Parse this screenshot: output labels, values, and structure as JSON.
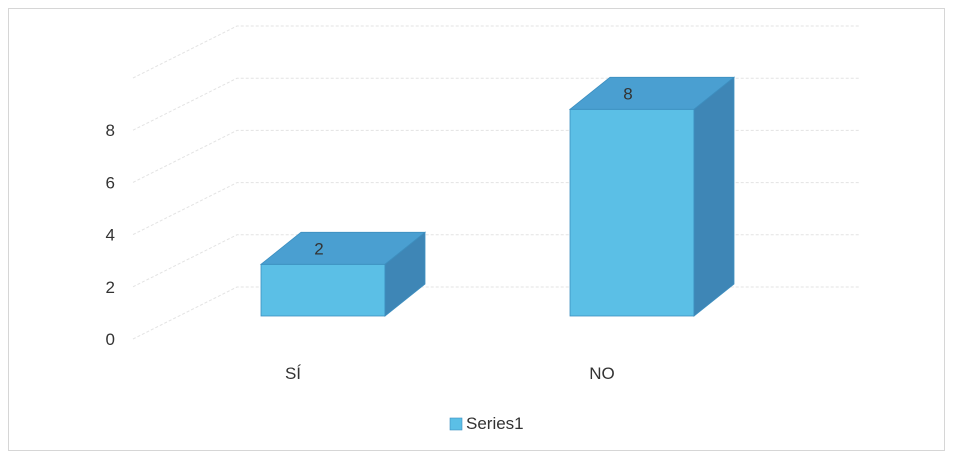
{
  "chart_data": {
    "type": "bar",
    "style": "3d-column",
    "categories": [
      "SÍ",
      "NO"
    ],
    "series": [
      {
        "name": "Series1",
        "values": [
          2,
          8
        ],
        "color": "#5bbfe6"
      }
    ],
    "data_labels": [
      "2",
      "8"
    ],
    "y_ticks": [
      "0",
      "2",
      "4",
      "6",
      "8"
    ],
    "ylim": [
      0,
      10
    ],
    "grid": true,
    "legend": {
      "position": "bottom",
      "entries": [
        "Series1"
      ]
    }
  }
}
